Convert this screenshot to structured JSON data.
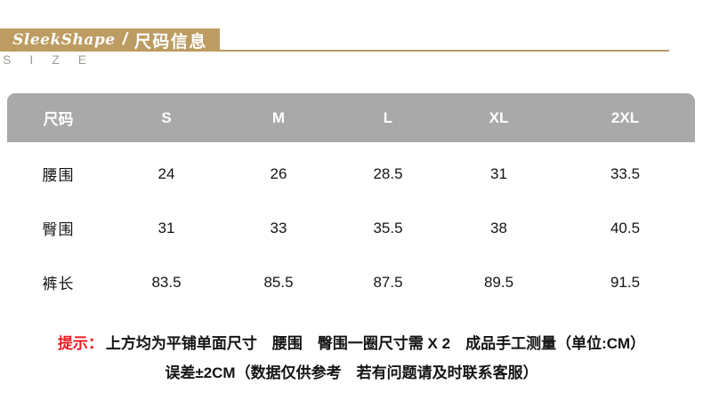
{
  "header": {
    "brand": "SleekShape",
    "separator": "/",
    "title": "尺码信息",
    "subtitle_letters": "SIZE",
    "banner_color": "#bc9c62",
    "rule_color": "#b59a66"
  },
  "chart_data": {
    "type": "table",
    "title": "尺码信息",
    "columns": [
      "尺码",
      "S",
      "M",
      "L",
      "XL",
      "2XL"
    ],
    "rows": [
      [
        "腰围",
        24,
        26,
        28.5,
        31,
        33.5
      ],
      [
        "臀围",
        31,
        33,
        35.5,
        38,
        40.5
      ],
      [
        "裤长",
        83.5,
        85.5,
        87.5,
        89.5,
        91.5
      ]
    ],
    "unit": "CM",
    "header_bg": "#a9a9a9",
    "header_text_color": "#ffffff"
  },
  "notes": {
    "tip_label": "提示：",
    "tip_label_color": "#ed1c24",
    "line1": "上方均为平铺单面尺寸　腰围　臀围一圈尺寸需 X 2　成品手工测量（单位:CM）",
    "line2": "误差±2CM（数据仅供参考　若有问题请及时联系客服）"
  }
}
